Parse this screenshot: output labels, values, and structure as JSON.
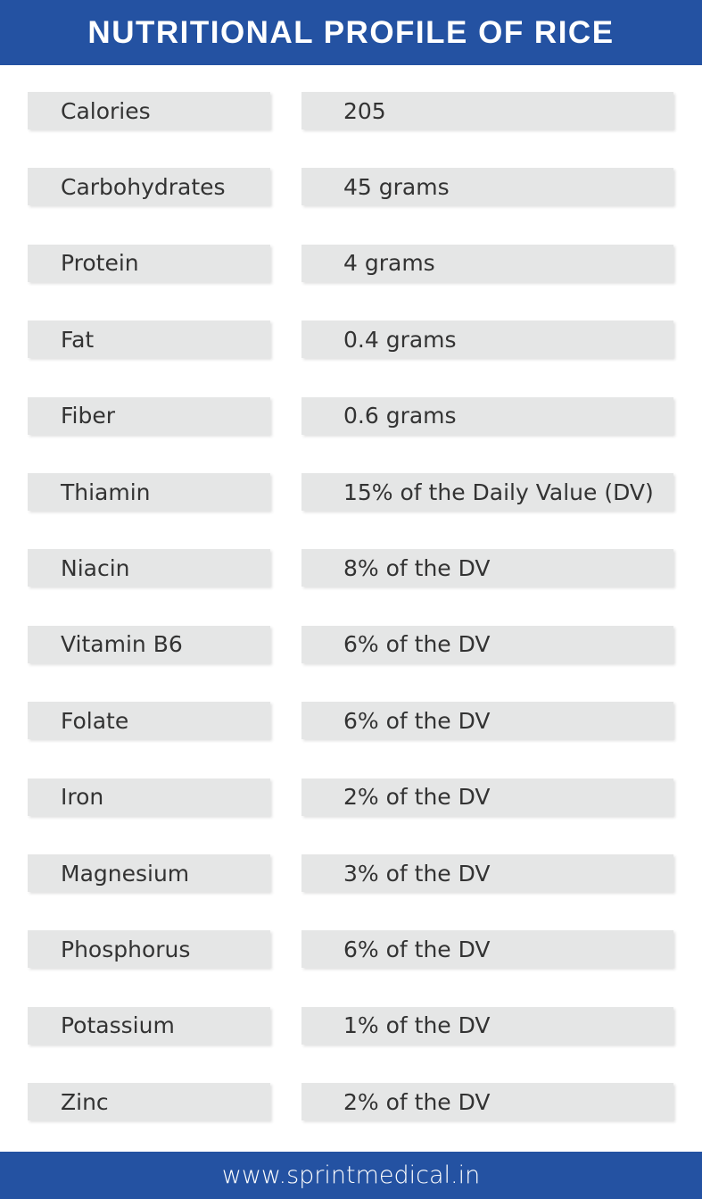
{
  "header": {
    "title": "NUTRITIONAL PROFILE OF RICE"
  },
  "table": {
    "rows": [
      [
        "Calories",
        "205"
      ],
      [
        "Carbohydrates",
        "45 grams"
      ],
      [
        "Protein",
        "4 grams"
      ],
      [
        "Fat",
        "0.4 grams"
      ],
      [
        "Fiber",
        "0.6 grams"
      ],
      [
        "Thiamin",
        "15% of the Daily Value (DV)"
      ],
      [
        "Niacin",
        "8% of the DV"
      ],
      [
        "Vitamin B6",
        "6% of the DV"
      ],
      [
        "Folate",
        "6% of the DV"
      ],
      [
        "Iron",
        "2% of the DV"
      ],
      [
        "Magnesium",
        "3% of the DV"
      ],
      [
        "Phosphorus",
        "6% of the DV"
      ],
      [
        "Potassium",
        "1% of the DV"
      ],
      [
        "Zinc",
        "2% of the DV"
      ]
    ]
  },
  "footer": {
    "url": "www.sprintmedical.in"
  }
}
